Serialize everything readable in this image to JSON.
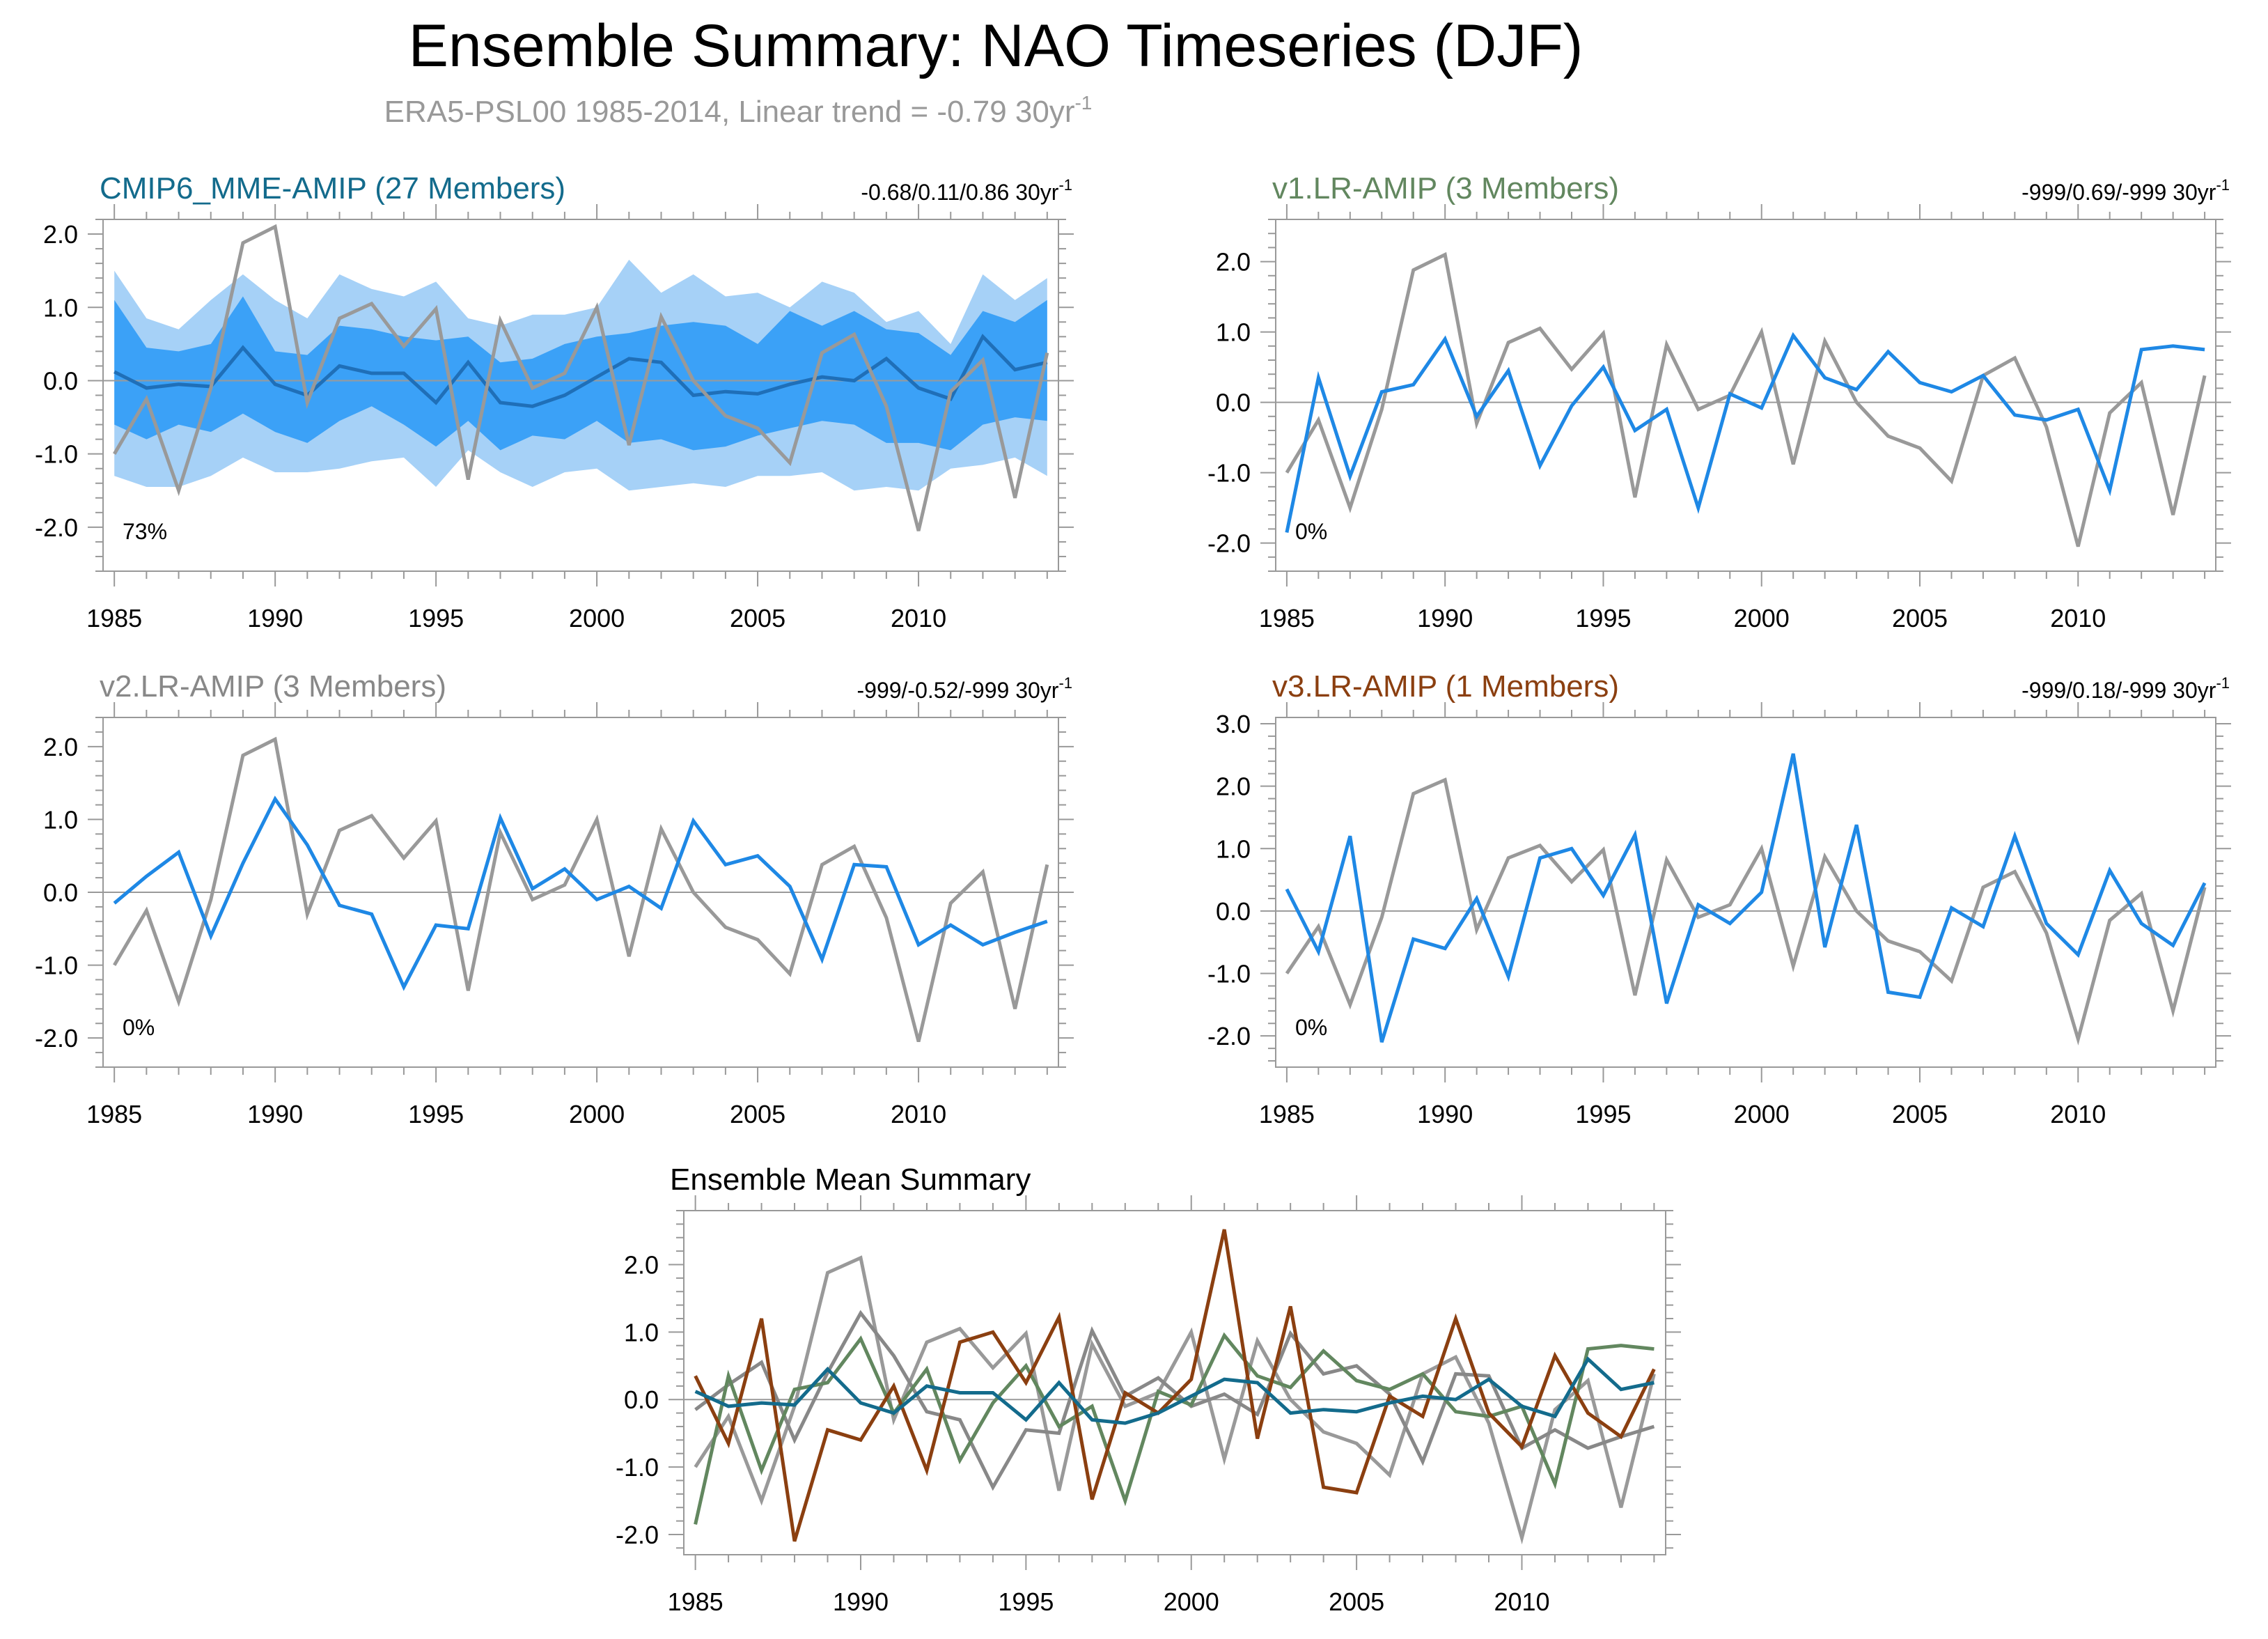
{
  "title": "Ensemble Summary: NAO Timeseries (DJF)",
  "subtitle": {
    "text": "ERA5-PSL00 1985-2014, Linear trend = -0.79 30yr",
    "sup": "-1"
  },
  "unit_sup": "-1",
  "colors": {
    "obs": "#999999",
    "model": "#1e88e5",
    "band_outer": "#a6d1f7",
    "band_inner": "#3ba1f7",
    "mme_mean": "#1f6fb8",
    "mme_title": "#136b8c",
    "v1_title": "#62875f",
    "v2_title": "#888888",
    "v3_title": "#8b3f10",
    "axis": "#999999"
  },
  "chart_data": [
    {
      "id": "mme",
      "type": "line",
      "title": "CMIP6_MME-AMIP (27 Members)",
      "right_label": "-0.68/0.11/0.86 30yr",
      "percent_label": "73%",
      "ylim": [
        -2.6,
        2.2
      ],
      "yticks": [
        -2,
        -1,
        0,
        1,
        2
      ],
      "ytick_labels": [
        "-2.0",
        "-1.0",
        "0.0",
        "1.0",
        "2.0"
      ],
      "xticks": [
        1985,
        1990,
        1995,
        2000,
        2005,
        2010
      ],
      "x": [
        1985,
        1986,
        1987,
        1988,
        1989,
        1990,
        1991,
        1992,
        1993,
        1994,
        1995,
        1996,
        1997,
        1998,
        1999,
        2000,
        2001,
        2002,
        2003,
        2004,
        2005,
        2006,
        2007,
        2008,
        2009,
        2010,
        2011,
        2012,
        2013,
        2014
      ],
      "band_outer_upper": [
        1.5,
        0.85,
        0.7,
        1.1,
        1.45,
        1.1,
        0.85,
        1.45,
        1.25,
        1.15,
        1.35,
        0.85,
        0.75,
        0.9,
        0.9,
        1.0,
        1.65,
        1.2,
        1.45,
        1.15,
        1.2,
        1.0,
        1.35,
        1.2,
        0.8,
        0.95,
        0.5,
        1.45,
        1.1,
        1.4
      ],
      "band_outer_lower": [
        -1.3,
        -1.45,
        -1.45,
        -1.3,
        -1.05,
        -1.25,
        -1.25,
        -1.2,
        -1.1,
        -1.05,
        -1.45,
        -0.95,
        -1.25,
        -1.45,
        -1.25,
        -1.2,
        -1.5,
        -1.45,
        -1.4,
        -1.45,
        -1.3,
        -1.3,
        -1.25,
        -1.5,
        -1.45,
        -1.5,
        -1.2,
        -1.15,
        -1.05,
        -1.3
      ],
      "band_inner_upper": [
        1.1,
        0.45,
        0.4,
        0.5,
        1.15,
        0.4,
        0.35,
        0.75,
        0.7,
        0.6,
        0.55,
        0.6,
        0.25,
        0.3,
        0.5,
        0.6,
        0.65,
        0.75,
        0.8,
        0.75,
        0.5,
        0.95,
        0.75,
        0.95,
        0.7,
        0.65,
        0.35,
        0.95,
        0.8,
        1.1
      ],
      "band_inner_lower": [
        -0.6,
        -0.8,
        -0.6,
        -0.7,
        -0.45,
        -0.7,
        -0.85,
        -0.55,
        -0.35,
        -0.6,
        -0.9,
        -0.55,
        -0.95,
        -0.75,
        -0.8,
        -0.55,
        -0.85,
        -0.8,
        -0.95,
        -0.9,
        -0.75,
        -0.65,
        -0.55,
        -0.6,
        -0.85,
        -0.85,
        -0.95,
        -0.6,
        -0.5,
        -0.55
      ],
      "series": [
        {
          "name": "CMIP6_MME-AMIP mean",
          "color": "#1f6fb8",
          "values": [
            0.12,
            -0.1,
            -0.05,
            -0.08,
            0.45,
            -0.05,
            -0.2,
            0.2,
            0.1,
            0.1,
            -0.3,
            0.25,
            -0.3,
            -0.35,
            -0.2,
            0.05,
            0.3,
            0.25,
            -0.2,
            -0.15,
            -0.18,
            -0.05,
            0.05,
            0.0,
            0.3,
            -0.1,
            -0.25,
            0.6,
            0.15,
            0.25
          ]
        },
        {
          "name": "ERA5-PSL00",
          "color": "#999999",
          "values": [
            -1.0,
            -0.25,
            -1.5,
            -0.1,
            1.88,
            2.1,
            -0.3,
            0.85,
            1.05,
            0.47,
            0.98,
            -1.35,
            0.82,
            -0.1,
            0.1,
            1.0,
            -0.88,
            0.87,
            0.0,
            -0.48,
            -0.65,
            -1.12,
            0.38,
            0.63,
            -0.35,
            -2.05,
            -0.15,
            0.28,
            -1.6,
            0.38
          ]
        }
      ]
    },
    {
      "id": "v1",
      "type": "line",
      "title": "v1.LR-AMIP (3 Members)",
      "right_label": "-999/0.69/-999 30yr",
      "percent_label": "0%",
      "ylim": [
        -2.4,
        2.6
      ],
      "yticks": [
        -2,
        -1,
        0,
        1,
        2
      ],
      "ytick_labels": [
        "-2.0",
        "-1.0",
        "0.0",
        "1.0",
        "2.0"
      ],
      "xticks": [
        1985,
        1990,
        1995,
        2000,
        2005,
        2010
      ],
      "x": [
        1985,
        1986,
        1987,
        1988,
        1989,
        1990,
        1991,
        1992,
        1993,
        1994,
        1995,
        1996,
        1997,
        1998,
        1999,
        2000,
        2001,
        2002,
        2003,
        2004,
        2005,
        2006,
        2007,
        2008,
        2009,
        2010,
        2011,
        2012,
        2013,
        2014
      ],
      "series": [
        {
          "name": "ERA5-PSL00",
          "color": "#999999",
          "values": [
            -1.0,
            -0.25,
            -1.5,
            -0.1,
            1.88,
            2.1,
            -0.3,
            0.85,
            1.05,
            0.47,
            0.98,
            -1.35,
            0.82,
            -0.1,
            0.1,
            1.0,
            -0.88,
            0.87,
            0.0,
            -0.48,
            -0.65,
            -1.12,
            0.38,
            0.63,
            -0.35,
            -2.05,
            -0.15,
            0.28,
            -1.6,
            0.38
          ]
        },
        {
          "name": "v1.LR-AMIP",
          "color": "#1e88e5",
          "values": [
            -1.85,
            0.35,
            -1.05,
            0.15,
            0.25,
            0.9,
            -0.2,
            0.45,
            -0.9,
            -0.05,
            0.5,
            -0.4,
            -0.1,
            -1.5,
            0.12,
            -0.08,
            0.95,
            0.35,
            0.18,
            0.72,
            0.28,
            0.15,
            0.38,
            -0.18,
            -0.25,
            -0.1,
            -1.25,
            0.75,
            0.8,
            0.75
          ]
        }
      ]
    },
    {
      "id": "v2",
      "type": "line",
      "title": "v2.LR-AMIP (3 Members)",
      "right_label": "-999/-0.52/-999 30yr",
      "percent_label": "0%",
      "ylim": [
        -2.4,
        2.4
      ],
      "yticks": [
        -2,
        -1,
        0,
        1,
        2
      ],
      "ytick_labels": [
        "-2.0",
        "-1.0",
        "0.0",
        "1.0",
        "2.0"
      ],
      "xticks": [
        1985,
        1990,
        1995,
        2000,
        2005,
        2010
      ],
      "x": [
        1985,
        1986,
        1987,
        1988,
        1989,
        1990,
        1991,
        1992,
        1993,
        1994,
        1995,
        1996,
        1997,
        1998,
        1999,
        2000,
        2001,
        2002,
        2003,
        2004,
        2005,
        2006,
        2007,
        2008,
        2009,
        2010,
        2011,
        2012,
        2013,
        2014
      ],
      "series": [
        {
          "name": "ERA5-PSL00",
          "color": "#999999",
          "values": [
            -1.0,
            -0.25,
            -1.5,
            -0.1,
            1.88,
            2.1,
            -0.3,
            0.85,
            1.05,
            0.47,
            0.98,
            -1.35,
            0.82,
            -0.1,
            0.1,
            1.0,
            -0.88,
            0.87,
            0.0,
            -0.48,
            -0.65,
            -1.12,
            0.38,
            0.63,
            -0.35,
            -2.05,
            -0.15,
            0.28,
            -1.6,
            0.38
          ]
        },
        {
          "name": "v2.LR-AMIP",
          "color": "#1e88e5",
          "values": [
            -0.15,
            0.22,
            0.55,
            -0.6,
            0.4,
            1.28,
            0.65,
            -0.18,
            -0.3,
            -1.3,
            -0.45,
            -0.5,
            1.02,
            0.05,
            0.32,
            -0.1,
            0.08,
            -0.22,
            0.98,
            0.38,
            0.5,
            0.08,
            -0.92,
            0.38,
            0.35,
            -0.72,
            -0.45,
            -0.72,
            -0.55,
            -0.4
          ]
        }
      ]
    },
    {
      "id": "v3",
      "type": "line",
      "title": "v3.LR-AMIP (1 Members)",
      "right_label": "-999/0.18/-999 30yr",
      "percent_label": "0%",
      "ylim": [
        -2.5,
        3.1
      ],
      "yticks": [
        -2,
        -1,
        0,
        1,
        2,
        3
      ],
      "ytick_labels": [
        "-2.0",
        "-1.0",
        "0.0",
        "1.0",
        "2.0",
        "3.0"
      ],
      "xticks": [
        1985,
        1990,
        1995,
        2000,
        2005,
        2010
      ],
      "x": [
        1985,
        1986,
        1987,
        1988,
        1989,
        1990,
        1991,
        1992,
        1993,
        1994,
        1995,
        1996,
        1997,
        1998,
        1999,
        2000,
        2001,
        2002,
        2003,
        2004,
        2005,
        2006,
        2007,
        2008,
        2009,
        2010,
        2011,
        2012,
        2013,
        2014
      ],
      "series": [
        {
          "name": "ERA5-PSL00",
          "color": "#999999",
          "values": [
            -1.0,
            -0.25,
            -1.5,
            -0.1,
            1.88,
            2.1,
            -0.3,
            0.85,
            1.05,
            0.47,
            0.98,
            -1.35,
            0.82,
            -0.1,
            0.1,
            1.0,
            -0.88,
            0.87,
            0.0,
            -0.48,
            -0.65,
            -1.12,
            0.38,
            0.63,
            -0.35,
            -2.05,
            -0.15,
            0.28,
            -1.6,
            0.38
          ]
        },
        {
          "name": "v3.LR-AMIP",
          "color": "#1e88e5",
          "values": [
            0.35,
            -0.65,
            1.2,
            -2.1,
            -0.45,
            -0.6,
            0.2,
            -1.05,
            0.85,
            1.0,
            0.25,
            1.22,
            -1.48,
            0.1,
            -0.2,
            0.3,
            2.52,
            -0.58,
            1.38,
            -1.3,
            -1.38,
            0.05,
            -0.25,
            1.2,
            -0.2,
            -0.7,
            0.65,
            -0.2,
            -0.55,
            0.45
          ]
        }
      ]
    },
    {
      "id": "ens",
      "type": "line",
      "title": "Ensemble Mean Summary",
      "ylim": [
        -2.3,
        2.8
      ],
      "yticks": [
        -2,
        -1,
        0,
        1,
        2
      ],
      "ytick_labels": [
        "-2.0",
        "-1.0",
        "0.0",
        "1.0",
        "2.0"
      ],
      "xticks": [
        1985,
        1990,
        1995,
        2000,
        2005,
        2010
      ],
      "x": [
        1985,
        1986,
        1987,
        1988,
        1989,
        1990,
        1991,
        1992,
        1993,
        1994,
        1995,
        1996,
        1997,
        1998,
        1999,
        2000,
        2001,
        2002,
        2003,
        2004,
        2005,
        2006,
        2007,
        2008,
        2009,
        2010,
        2011,
        2012,
        2013,
        2014
      ],
      "series": [
        {
          "name": "ERA5-PSL00",
          "color": "#999999",
          "values": [
            -1.0,
            -0.25,
            -1.5,
            -0.1,
            1.88,
            2.1,
            -0.3,
            0.85,
            1.05,
            0.47,
            0.98,
            -1.35,
            0.82,
            -0.1,
            0.1,
            1.0,
            -0.88,
            0.87,
            0.0,
            -0.48,
            -0.65,
            -1.12,
            0.38,
            0.63,
            -0.35,
            -2.05,
            -0.15,
            0.28,
            -1.6,
            0.38
          ]
        },
        {
          "name": "v2.LR-AMIP",
          "color": "#888888",
          "values": [
            -0.15,
            0.22,
            0.55,
            -0.6,
            0.4,
            1.28,
            0.65,
            -0.18,
            -0.3,
            -1.3,
            -0.45,
            -0.5,
            1.02,
            0.05,
            0.32,
            -0.1,
            0.08,
            -0.22,
            0.98,
            0.38,
            0.5,
            0.08,
            -0.92,
            0.38,
            0.35,
            -0.72,
            -0.45,
            -0.72,
            -0.55,
            -0.4
          ]
        },
        {
          "name": "v1.LR-AMIP",
          "color": "#62875f",
          "values": [
            -1.85,
            0.35,
            -1.05,
            0.15,
            0.25,
            0.9,
            -0.2,
            0.45,
            -0.9,
            -0.05,
            0.5,
            -0.4,
            -0.1,
            -1.5,
            0.12,
            -0.08,
            0.95,
            0.35,
            0.18,
            0.72,
            0.28,
            0.15,
            0.38,
            -0.18,
            -0.25,
            -0.1,
            -1.25,
            0.75,
            0.8,
            0.75
          ]
        },
        {
          "name": "v3.LR-AMIP",
          "color": "#8b3f10",
          "values": [
            0.35,
            -0.65,
            1.2,
            -2.1,
            -0.45,
            -0.6,
            0.2,
            -1.05,
            0.85,
            1.0,
            0.25,
            1.22,
            -1.48,
            0.1,
            -0.2,
            0.3,
            2.52,
            -0.58,
            1.38,
            -1.3,
            -1.38,
            0.05,
            -0.25,
            1.2,
            -0.2,
            -0.7,
            0.65,
            -0.2,
            -0.55,
            0.45
          ]
        },
        {
          "name": "CMIP6_MME-AMIP",
          "color": "#136b8c",
          "values": [
            0.12,
            -0.1,
            -0.05,
            -0.08,
            0.45,
            -0.05,
            -0.2,
            0.2,
            0.1,
            0.1,
            -0.3,
            0.25,
            -0.3,
            -0.35,
            -0.2,
            0.05,
            0.3,
            0.25,
            -0.2,
            -0.15,
            -0.18,
            -0.05,
            0.05,
            0.0,
            0.3,
            -0.1,
            -0.25,
            0.6,
            0.15,
            0.25
          ]
        }
      ]
    }
  ]
}
